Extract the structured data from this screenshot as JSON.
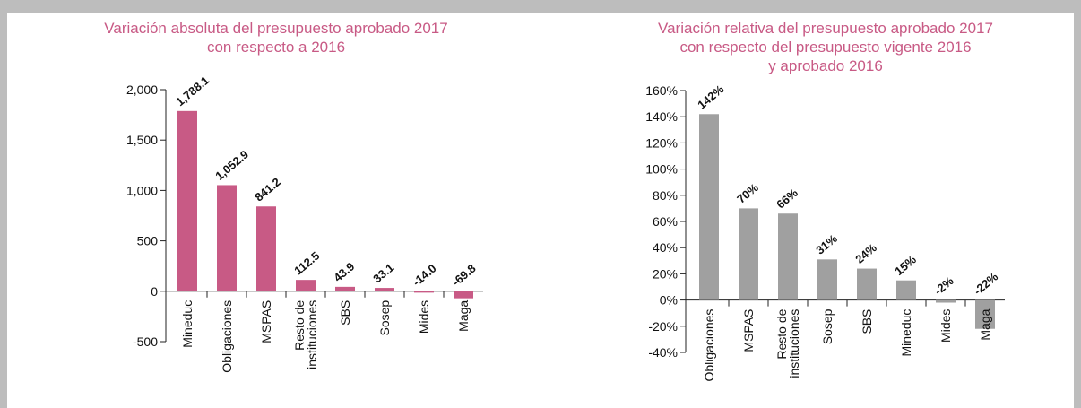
{
  "chart_data": [
    {
      "type": "bar",
      "title": [
        "Variación absoluta del presupuesto aprobado 2017",
        "con respecto a 2016"
      ],
      "categories": [
        "Mineduc",
        "Obligaciones",
        "MSPAS",
        "Resto de instituciones",
        "SBS",
        "Sosep",
        "Mides",
        "Maga"
      ],
      "values": [
        1788.1,
        1052.9,
        841.2,
        112.5,
        43.9,
        33.1,
        -14.0,
        -69.8
      ],
      "value_labels": [
        "1,788.1",
        "1,052.9",
        "841.2",
        "112.5",
        "43.9",
        "33.1",
        "-14.0",
        "-69.8"
      ],
      "color": "#c85a85",
      "ylim": [
        -500,
        2000
      ],
      "yticks": [
        -500,
        0,
        500,
        {
          "value": 1000,
          "label": "1,000"
        },
        {
          "value": 1500,
          "label": "1,500"
        },
        {
          "value": 2000,
          "label": "2,000"
        }
      ],
      "grid": false
    },
    {
      "type": "bar",
      "title": [
        "Variación relativa del presupuesto aprobado 2017",
        "con respecto del presupuesto vigente 2016",
        "y aprobado 2016"
      ],
      "categories": [
        "Obligaciones",
        "MSPAS",
        "Resto de instituciones",
        "Sosep",
        "SBS",
        "Mineduc",
        "Mides",
        "Maga"
      ],
      "values": [
        142,
        70,
        66,
        31,
        24,
        15,
        -2,
        -22
      ],
      "value_labels": [
        "142%",
        "70%",
        "66%",
        "31%",
        "24%",
        "15%",
        "-2%",
        "-22%"
      ],
      "color": "#a0a0a0",
      "ylim": [
        -40,
        160
      ],
      "yticks": [
        {
          "value": -40,
          "label": "-40%"
        },
        {
          "value": -20,
          "label": "-20%"
        },
        {
          "value": 0,
          "label": "0%"
        },
        {
          "value": 20,
          "label": "20%"
        },
        {
          "value": 40,
          "label": "40%"
        },
        {
          "value": 60,
          "label": "60%"
        },
        {
          "value": 80,
          "label": "80%"
        },
        {
          "value": 100,
          "label": "100%"
        },
        {
          "value": 120,
          "label": "120%"
        },
        {
          "value": 140,
          "label": "140%"
        },
        {
          "value": 160,
          "label": "160%"
        }
      ],
      "grid": false
    }
  ]
}
